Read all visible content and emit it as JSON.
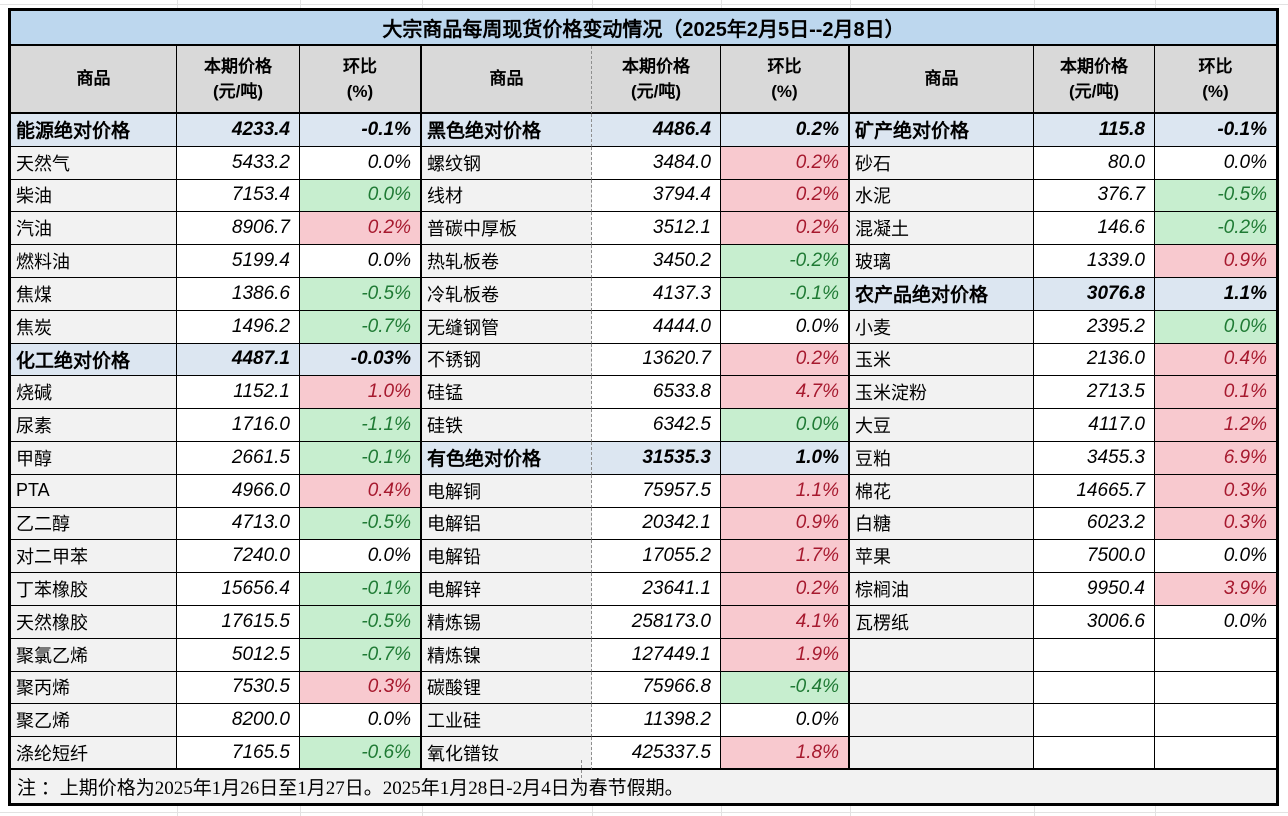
{
  "title": "大宗商品每周现货价格变动情况（2025年2月5日--2月8日）",
  "header": {
    "commodity": "商品",
    "price": "本期价格\n(元/吨)",
    "pct": "环比\n(%)"
  },
  "note": "注 ：上期价格为2025年1月26日至1月27日。2025年1月28日-2月4日为春节假期。",
  "colors": {
    "title_bg": "#BDD7EE",
    "header_bg": "#D9D9D9",
    "category_bg": "#DCE6F1",
    "name_bg": "#F2F2F2",
    "up_bg": "#F8C9CF",
    "up_text": "#A6192E",
    "down_bg": "#C7EECF",
    "down_text": "#1F7A34",
    "border": "#000000"
  },
  "groups": [
    {
      "rows": [
        {
          "name": "能源绝对价格",
          "price": "4233.4",
          "pct": "-0.1%",
          "type": "category"
        },
        {
          "name": "天然气",
          "price": "5433.2",
          "pct": "0.0%",
          "type": "flat"
        },
        {
          "name": "柴油",
          "price": "7153.4",
          "pct": "0.0%",
          "type": "down"
        },
        {
          "name": "汽油",
          "price": "8906.7",
          "pct": "0.2%",
          "type": "up"
        },
        {
          "name": "燃料油",
          "price": "5199.4",
          "pct": "0.0%",
          "type": "flat"
        },
        {
          "name": "焦煤",
          "price": "1386.6",
          "pct": "-0.5%",
          "type": "down"
        },
        {
          "name": "焦炭",
          "price": "1496.2",
          "pct": "-0.7%",
          "type": "down"
        },
        {
          "name": "化工绝对价格",
          "price": "4487.1",
          "pct": "-0.03%",
          "type": "category"
        },
        {
          "name": "烧碱",
          "price": "1152.1",
          "pct": "1.0%",
          "type": "up"
        },
        {
          "name": "尿素",
          "price": "1716.0",
          "pct": "-1.1%",
          "type": "down"
        },
        {
          "name": "甲醇",
          "price": "2661.5",
          "pct": "-0.1%",
          "type": "down"
        },
        {
          "name": "PTA",
          "price": "4966.0",
          "pct": "0.4%",
          "type": "up"
        },
        {
          "name": "乙二醇",
          "price": "4713.0",
          "pct": "-0.5%",
          "type": "down"
        },
        {
          "name": "对二甲苯",
          "price": "7240.0",
          "pct": "0.0%",
          "type": "flat"
        },
        {
          "name": "丁苯橡胶",
          "price": "15656.4",
          "pct": "-0.1%",
          "type": "down"
        },
        {
          "name": "天然橡胶",
          "price": "17615.5",
          "pct": "-0.5%",
          "type": "down"
        },
        {
          "name": "聚氯乙烯",
          "price": "5012.5",
          "pct": "-0.7%",
          "type": "down"
        },
        {
          "name": "聚丙烯",
          "price": "7530.5",
          "pct": "0.3%",
          "type": "up"
        },
        {
          "name": "聚乙烯",
          "price": "8200.0",
          "pct": "0.0%",
          "type": "flat"
        },
        {
          "name": "涤纶短纤",
          "price": "7165.5",
          "pct": "-0.6%",
          "type": "down"
        }
      ]
    },
    {
      "rows": [
        {
          "name": "黑色绝对价格",
          "price": "4486.4",
          "pct": "0.2%",
          "type": "category"
        },
        {
          "name": "螺纹钢",
          "price": "3484.0",
          "pct": "0.2%",
          "type": "up"
        },
        {
          "name": "线材",
          "price": "3794.4",
          "pct": "0.2%",
          "type": "up"
        },
        {
          "name": "普碳中厚板",
          "price": "3512.1",
          "pct": "0.2%",
          "type": "up"
        },
        {
          "name": "热轧板卷",
          "price": "3450.2",
          "pct": "-0.2%",
          "type": "down"
        },
        {
          "name": "冷轧板卷",
          "price": "4137.3",
          "pct": "-0.1%",
          "type": "down"
        },
        {
          "name": "无缝钢管",
          "price": "4444.0",
          "pct": "0.0%",
          "type": "flat"
        },
        {
          "name": "不锈钢",
          "price": "13620.7",
          "pct": "0.2%",
          "type": "up"
        },
        {
          "name": "硅锰",
          "price": "6533.8",
          "pct": "4.7%",
          "type": "up"
        },
        {
          "name": "硅铁",
          "price": "6342.5",
          "pct": "0.0%",
          "type": "down"
        },
        {
          "name": "有色绝对价格",
          "price": "31535.3",
          "pct": "1.0%",
          "type": "category"
        },
        {
          "name": "电解铜",
          "price": "75957.5",
          "pct": "1.1%",
          "type": "up"
        },
        {
          "name": "电解铝",
          "price": "20342.1",
          "pct": "0.9%",
          "type": "up"
        },
        {
          "name": "电解铅",
          "price": "17055.2",
          "pct": "1.7%",
          "type": "up"
        },
        {
          "name": "电解锌",
          "price": "23641.1",
          "pct": "0.2%",
          "type": "up"
        },
        {
          "name": "精炼锡",
          "price": "258173.0",
          "pct": "4.1%",
          "type": "up"
        },
        {
          "name": "精炼镍",
          "price": "127449.1",
          "pct": "1.9%",
          "type": "up"
        },
        {
          "name": "碳酸锂",
          "price": "75966.8",
          "pct": "-0.4%",
          "type": "down"
        },
        {
          "name": "工业硅",
          "price": "11398.2",
          "pct": "0.0%",
          "type": "flat"
        },
        {
          "name": "氧化镨钕",
          "price": "425337.5",
          "pct": "1.8%",
          "type": "up"
        }
      ]
    },
    {
      "rows": [
        {
          "name": "矿产绝对价格",
          "price": "115.8",
          "pct": "-0.1%",
          "type": "category"
        },
        {
          "name": "砂石",
          "price": "80.0",
          "pct": "0.0%",
          "type": "flat"
        },
        {
          "name": "水泥",
          "price": "376.7",
          "pct": "-0.5%",
          "type": "down"
        },
        {
          "name": "混凝土",
          "price": "146.6",
          "pct": "-0.2%",
          "type": "down"
        },
        {
          "name": "玻璃",
          "price": "1339.0",
          "pct": "0.9%",
          "type": "up"
        },
        {
          "name": "农产品绝对价格",
          "price": "3076.8",
          "pct": "1.1%",
          "type": "category"
        },
        {
          "name": "小麦",
          "price": "2395.2",
          "pct": "0.0%",
          "type": "down"
        },
        {
          "name": "玉米",
          "price": "2136.0",
          "pct": "0.4%",
          "type": "up"
        },
        {
          "name": "玉米淀粉",
          "price": "2713.5",
          "pct": "0.1%",
          "type": "up"
        },
        {
          "name": "大豆",
          "price": "4117.0",
          "pct": "1.2%",
          "type": "up"
        },
        {
          "name": "豆粕",
          "price": "3455.3",
          "pct": "6.9%",
          "type": "up"
        },
        {
          "name": "棉花",
          "price": "14665.7",
          "pct": "0.3%",
          "type": "up"
        },
        {
          "name": "白糖",
          "price": "6023.2",
          "pct": "0.3%",
          "type": "up"
        },
        {
          "name": "苹果",
          "price": "7500.0",
          "pct": "0.0%",
          "type": "flat"
        },
        {
          "name": "棕榈油",
          "price": "9950.4",
          "pct": "3.9%",
          "type": "up"
        },
        {
          "name": "瓦楞纸",
          "price": "3006.6",
          "pct": "0.0%",
          "type": "flat"
        },
        {
          "name": "",
          "price": "",
          "pct": "",
          "type": "empty"
        },
        {
          "name": "",
          "price": "",
          "pct": "",
          "type": "empty"
        },
        {
          "name": "",
          "price": "",
          "pct": "",
          "type": "empty"
        },
        {
          "name": "",
          "price": "",
          "pct": "",
          "type": "empty"
        }
      ]
    }
  ]
}
